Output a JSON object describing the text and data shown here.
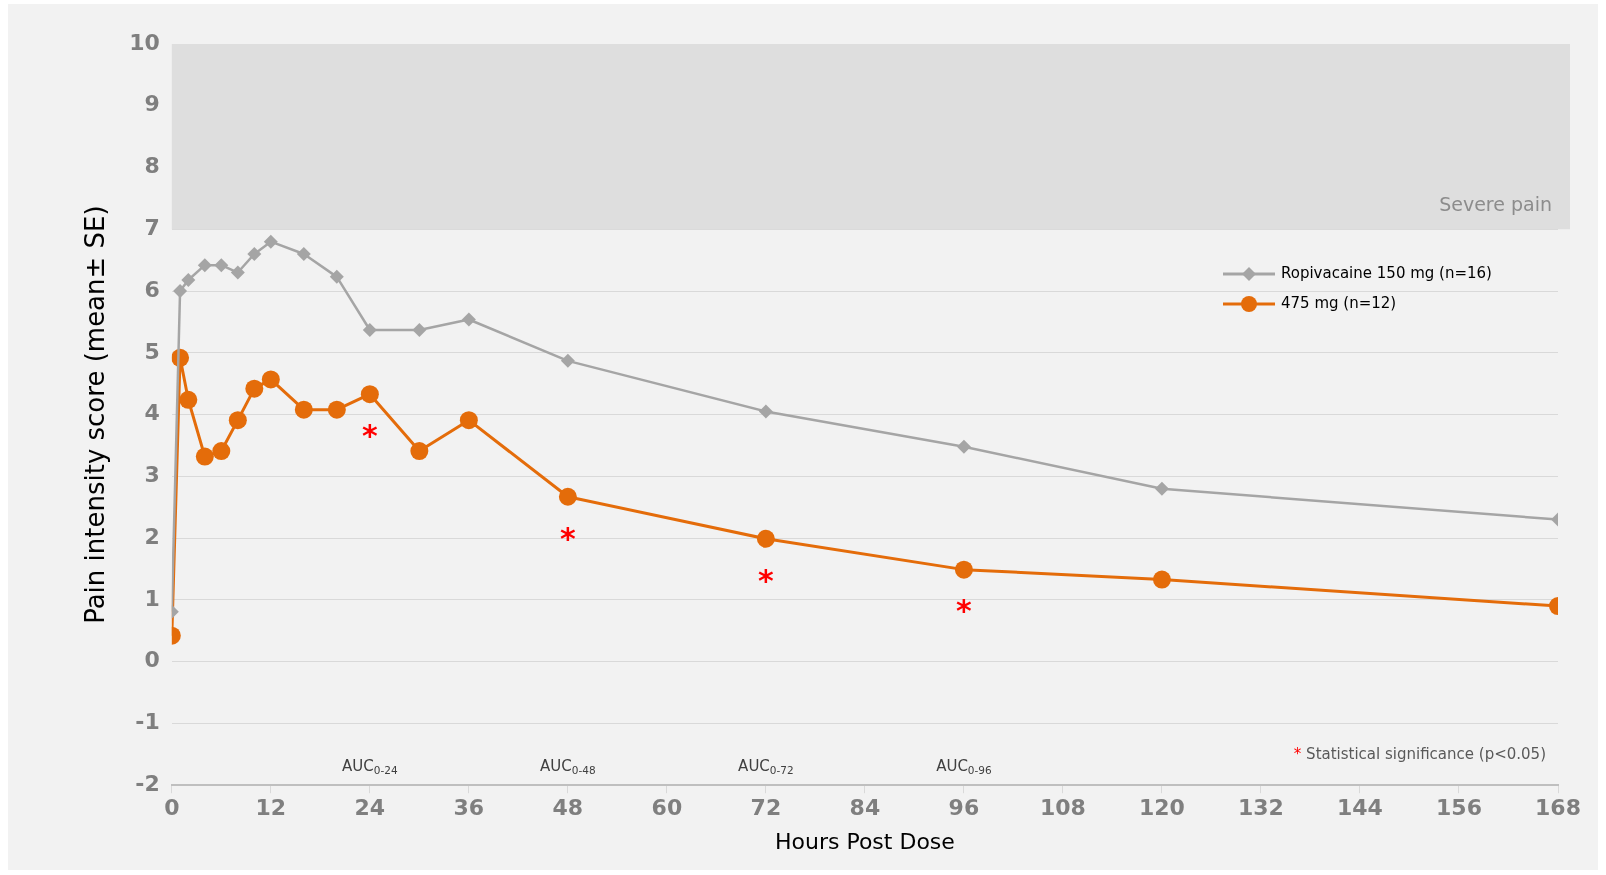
{
  "chart_data": {
    "type": "line",
    "xlabel": "Hours Post Dose",
    "ylabel": "Pain intensity score (mean± SE)",
    "xlim": [
      0,
      168
    ],
    "xticks": [
      0,
      12,
      24,
      36,
      48,
      60,
      72,
      84,
      96,
      108,
      120,
      132,
      144,
      156,
      168
    ],
    "ylim": [
      -2,
      10
    ],
    "yticks": [
      -2,
      -1,
      0,
      1,
      2,
      3,
      4,
      5,
      6,
      7,
      8,
      9,
      10
    ],
    "grid": "y",
    "legend": "top right",
    "series": [
      {
        "name": "Ropivacaine 150 mg (n=16)",
        "color": "#a5a5a5",
        "marker": "diamond",
        "x": [
          0,
          1,
          2,
          4,
          6,
          8,
          10,
          12,
          16,
          20,
          24,
          30,
          36,
          48,
          72,
          96,
          120,
          168
        ],
        "values": [
          0.81,
          6.0,
          6.18,
          6.42,
          6.42,
          6.3,
          6.6,
          6.8,
          6.6,
          6.23,
          5.37,
          5.37,
          5.54,
          4.87,
          4.05,
          3.48,
          2.8,
          2.3
        ]
      },
      {
        "name": "475 mg (n=12)",
        "color": "#e46c0a",
        "marker": "circle",
        "x": [
          0,
          1,
          2,
          4,
          6,
          8,
          10,
          12,
          16,
          20,
          24,
          30,
          36,
          48,
          72,
          96,
          120,
          168
        ],
        "values": [
          0.42,
          4.92,
          4.24,
          3.32,
          3.41,
          3.91,
          4.42,
          4.57,
          4.08,
          4.08,
          4.33,
          3.41,
          3.91,
          2.67,
          1.99,
          1.49,
          1.33,
          0.9
        ]
      }
    ],
    "bands": [
      {
        "axis": "y",
        "from": 7,
        "to": 10,
        "label": "Severe pain",
        "color": "#dedede"
      }
    ],
    "annotations": [
      {
        "text": "*",
        "x": 24,
        "y": 4.33
      },
      {
        "text": "*",
        "x": 48,
        "y": 2.67
      },
      {
        "text": "*",
        "x": 72,
        "y": 1.99
      },
      {
        "text": "*",
        "x": 96,
        "y": 1.49
      },
      "AUC$_{0-24}$",
      "AUC$_{0-48}$",
      "AUC$_{0-72}$",
      "AUC$_{0-96}$",
      "* Statistical significance (p<0.05)"
    ]
  }
}
